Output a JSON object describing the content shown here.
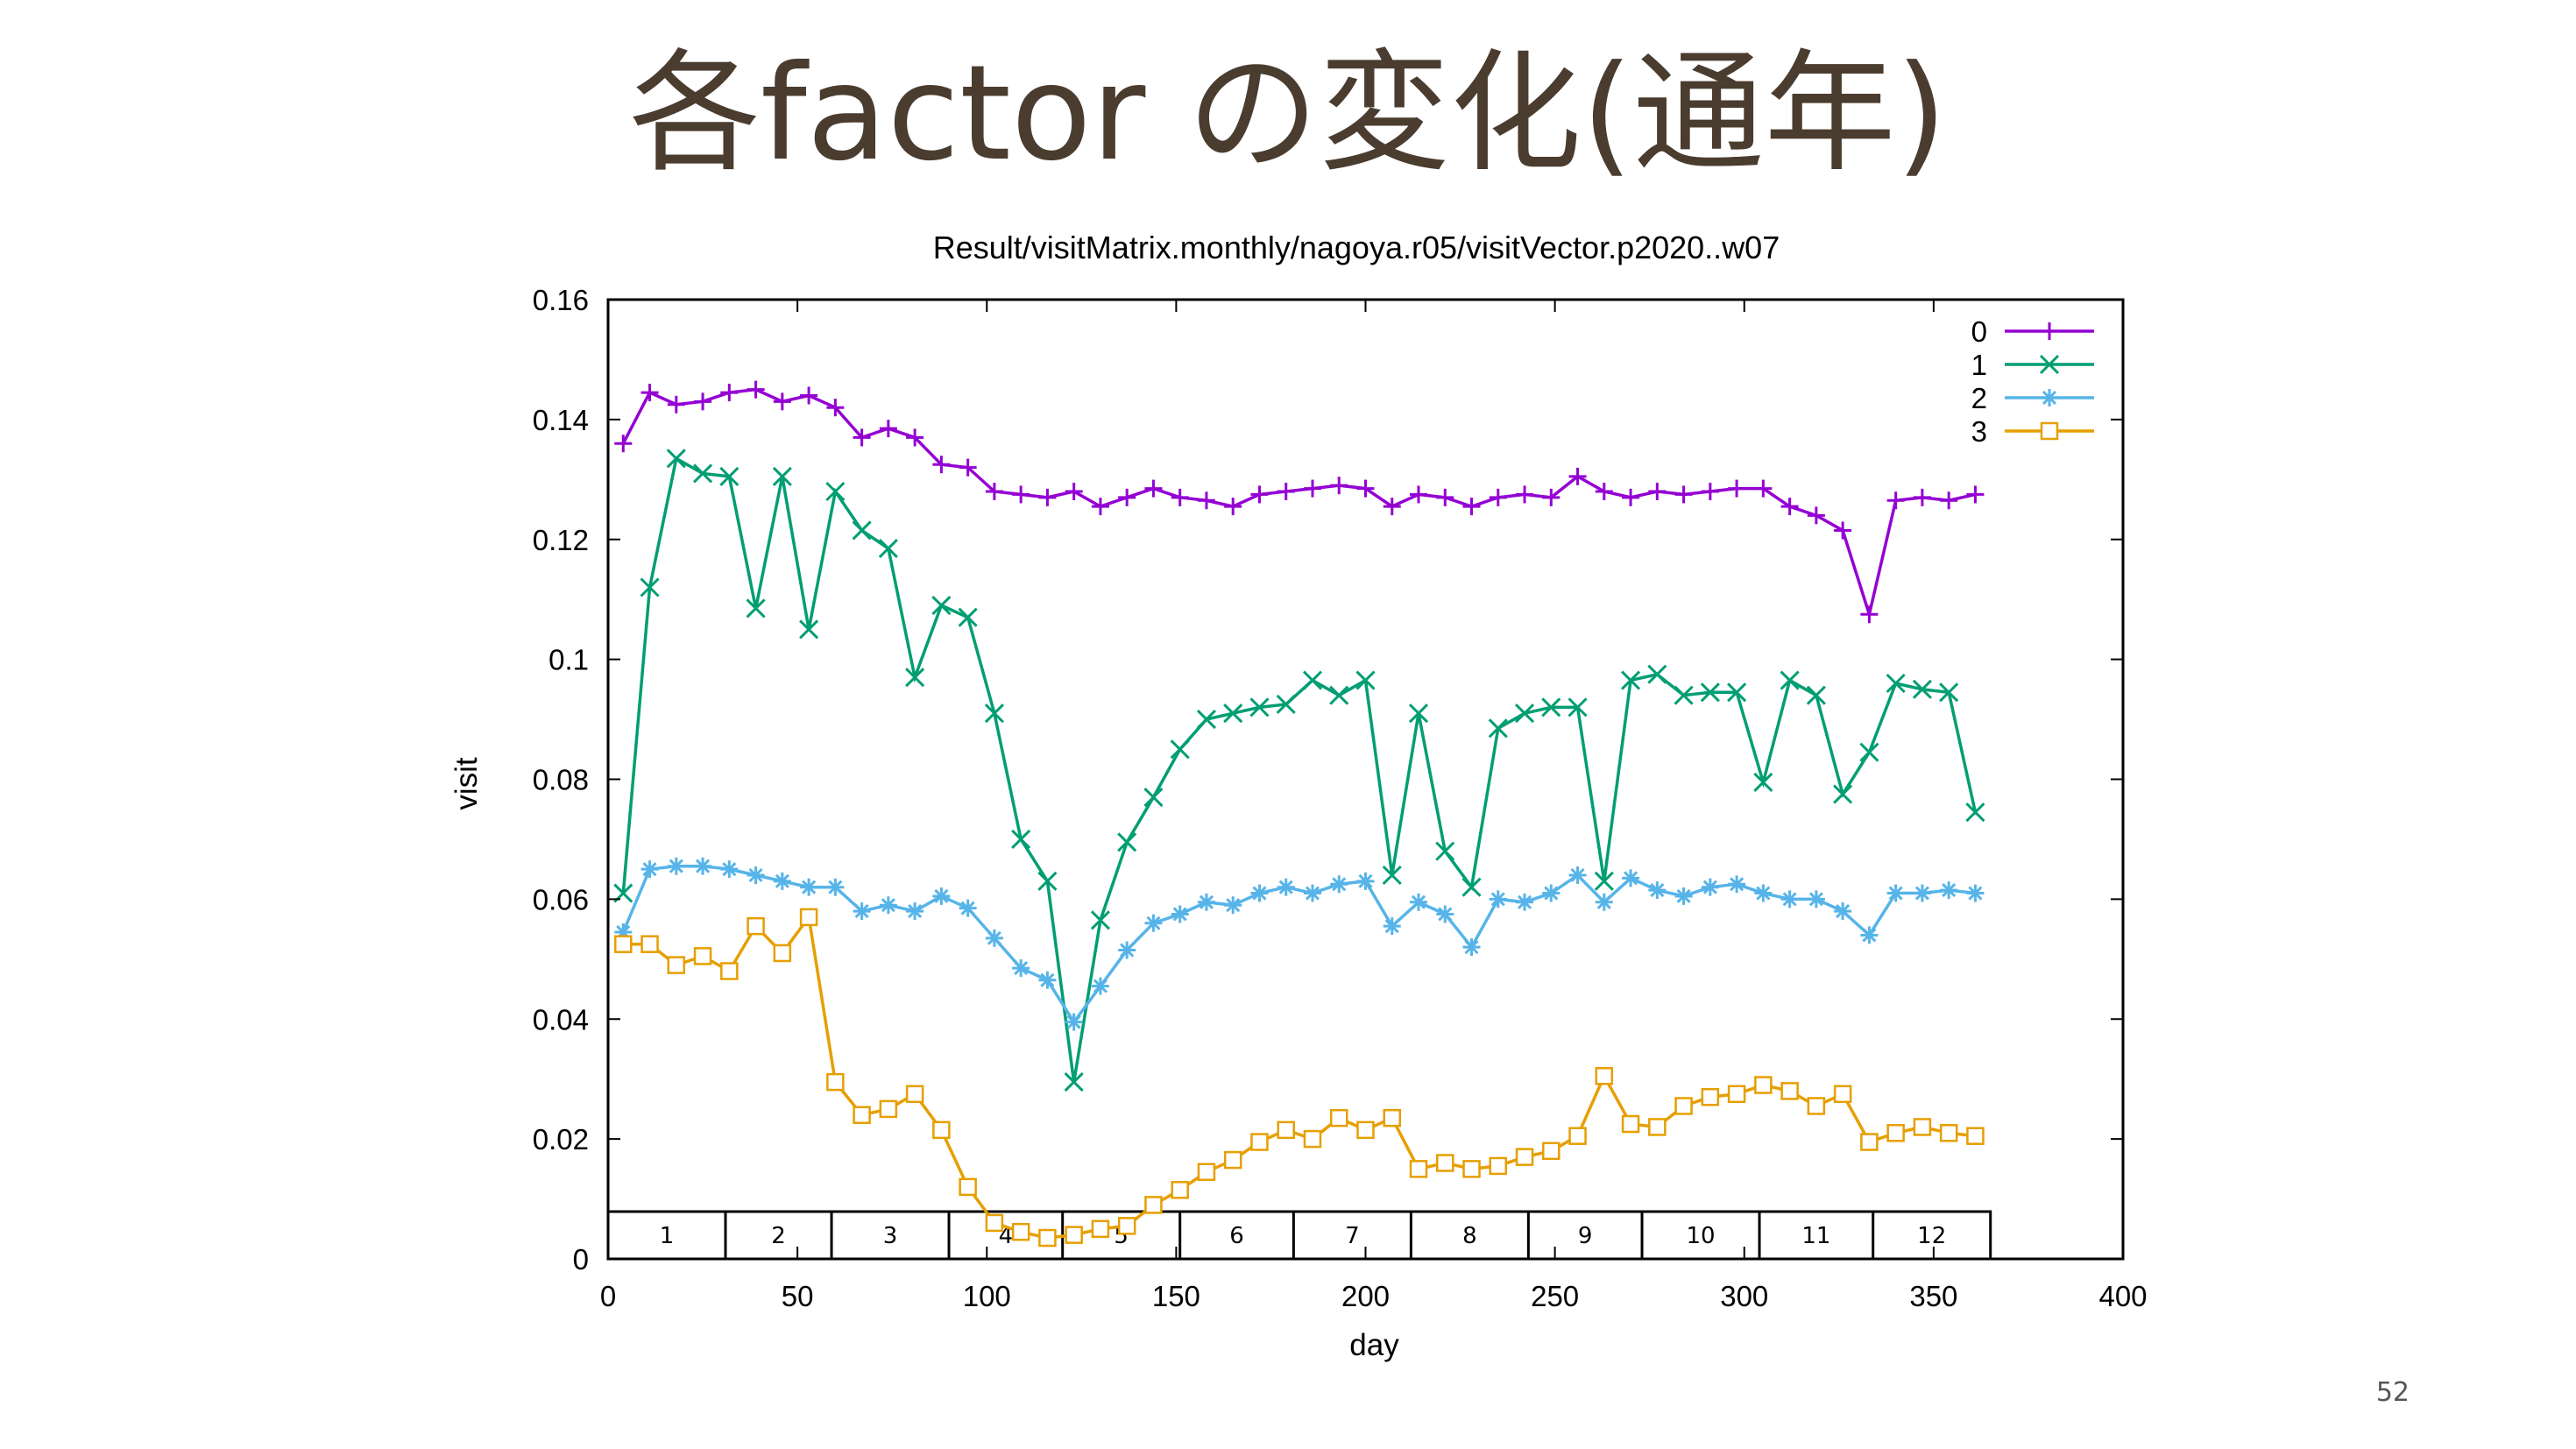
{
  "slide": {
    "title": "各factor の変化(通年)",
    "page_number": "52"
  },
  "chart_data": {
    "type": "line",
    "title": "Result/visitMatrix.monthly/nagoya.r05/visitVector.p2020..w07",
    "xlabel": "day",
    "ylabel": "visit",
    "xlim": [
      0,
      400
    ],
    "ylim": [
      0,
      0.16
    ],
    "xticks": [
      "0",
      "50",
      "100",
      "150",
      "200",
      "250",
      "300",
      "350",
      "400"
    ],
    "yticks": [
      "0",
      "0.02",
      "0.04",
      "0.06",
      "0.08",
      "0.1",
      "0.12",
      "0.14",
      "0.16"
    ],
    "legend_position": "top-right",
    "month_strip": {
      "labels": [
        "1",
        "2",
        "3",
        "4",
        "5",
        "6",
        "7",
        "8",
        "9",
        "10",
        "11",
        "12"
      ],
      "boundaries": [
        0,
        31,
        59,
        90,
        120,
        151,
        181,
        212,
        243,
        273,
        304,
        334,
        365
      ]
    },
    "x": [
      4,
      11,
      18,
      25,
      32,
      39,
      46,
      53,
      60,
      67,
      74,
      81,
      88,
      95,
      102,
      109,
      116,
      123,
      130,
      137,
      144,
      151,
      158,
      165,
      172,
      179,
      186,
      193,
      200,
      207,
      214,
      221,
      228,
      235,
      242,
      249,
      256,
      263,
      270,
      277,
      284,
      291,
      298,
      305,
      312,
      319,
      326,
      333,
      340,
      347,
      354,
      361
    ],
    "series": [
      {
        "name": "0",
        "color": "#9400d3",
        "marker": "plus",
        "values": [
          0.136,
          0.1445,
          0.1425,
          0.143,
          0.1445,
          0.145,
          0.143,
          0.144,
          0.142,
          0.137,
          0.1385,
          0.137,
          0.1325,
          0.132,
          0.128,
          0.1275,
          0.127,
          0.128,
          0.1255,
          0.127,
          0.1285,
          0.127,
          0.1265,
          0.1255,
          0.1275,
          0.128,
          0.1285,
          0.129,
          0.1285,
          0.1255,
          0.1275,
          0.127,
          0.1255,
          0.127,
          0.1275,
          0.127,
          0.1305,
          0.128,
          0.127,
          0.128,
          0.1275,
          0.128,
          0.1285,
          0.1285,
          0.1255,
          0.124,
          0.1215,
          0.1075,
          0.1265,
          0.127,
          0.1265,
          0.1275
        ]
      },
      {
        "name": "1",
        "color": "#009e73",
        "marker": "cross",
        "values": [
          0.061,
          0.112,
          0.1335,
          0.131,
          0.1305,
          0.1085,
          0.1305,
          0.105,
          0.128,
          0.1215,
          0.1185,
          0.097,
          0.109,
          0.107,
          0.091,
          0.07,
          0.063,
          0.0295,
          0.0565,
          0.0695,
          0.077,
          0.085,
          0.09,
          0.091,
          0.092,
          0.0925,
          0.0965,
          0.094,
          0.0965,
          0.064,
          0.091,
          0.068,
          0.062,
          0.0885,
          0.091,
          0.092,
          0.092,
          0.063,
          0.0965,
          0.0975,
          0.094,
          0.0945,
          0.0945,
          0.0795,
          0.0965,
          0.094,
          0.0775,
          0.0845,
          0.096,
          0.095,
          0.0945,
          0.0745
        ]
      },
      {
        "name": "2",
        "color": "#56b4e9",
        "marker": "star",
        "values": [
          0.0545,
          0.065,
          0.0655,
          0.0655,
          0.065,
          0.064,
          0.063,
          0.062,
          0.062,
          0.058,
          0.059,
          0.058,
          0.0605,
          0.0585,
          0.0535,
          0.0485,
          0.0465,
          0.0395,
          0.0455,
          0.0515,
          0.056,
          0.0575,
          0.0595,
          0.059,
          0.061,
          0.062,
          0.061,
          0.0625,
          0.063,
          0.0555,
          0.0595,
          0.0575,
          0.052,
          0.06,
          0.0595,
          0.061,
          0.064,
          0.0595,
          0.0635,
          0.0615,
          0.0605,
          0.062,
          0.0625,
          0.061,
          0.06,
          0.06,
          0.058,
          0.054,
          0.061,
          0.061,
          0.0615,
          0.061
        ]
      },
      {
        "name": "3",
        "color": "#e69f00",
        "marker": "square",
        "values": [
          0.0525,
          0.0525,
          0.049,
          0.0505,
          0.048,
          0.0555,
          0.051,
          0.057,
          0.0295,
          0.024,
          0.025,
          0.0275,
          0.0215,
          0.012,
          0.006,
          0.0045,
          0.0035,
          0.004,
          0.005,
          0.0055,
          0.009,
          0.0115,
          0.0145,
          0.0165,
          0.0195,
          0.0215,
          0.02,
          0.0235,
          0.0215,
          0.0235,
          0.015,
          0.016,
          0.015,
          0.0155,
          0.017,
          0.018,
          0.0205,
          0.0305,
          0.0225,
          0.022,
          0.0255,
          0.027,
          0.0275,
          0.029,
          0.028,
          0.0255,
          0.0275,
          0.0195,
          0.021,
          0.022,
          0.021,
          0.0205
        ]
      }
    ]
  }
}
